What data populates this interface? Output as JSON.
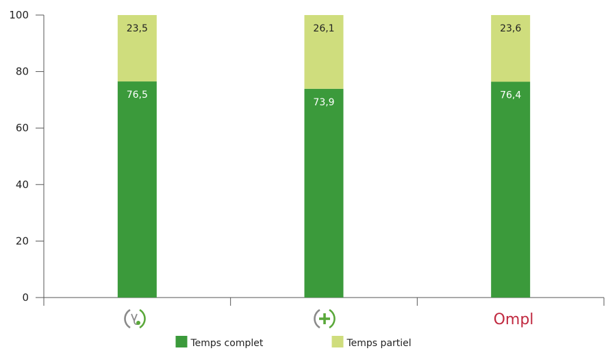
{
  "chart_data": {
    "type": "bar",
    "stacked": true,
    "categories": [
      "",
      "",
      ""
    ],
    "category_icons": [
      "stethoscope-icon",
      "medical-cross-icon",
      "ompl-logo"
    ],
    "logo_text": "Ompl",
    "series": [
      {
        "name": "Temps complet",
        "values": [
          76.5,
          73.9,
          76.4
        ],
        "labels": [
          "76,5",
          "73,9",
          "76,4"
        ],
        "color": "#3b9a3b",
        "label_color": "#ffffff"
      },
      {
        "name": "Temps partiel",
        "values": [
          23.5,
          26.1,
          23.6
        ],
        "labels": [
          "23,5",
          "26,1",
          "23,6"
        ],
        "color": "#cfdd7d",
        "label_color": "#222222"
      }
    ],
    "ylim": [
      0,
      100
    ],
    "yticks": [
      0,
      20,
      40,
      60,
      80,
      100
    ],
    "ytick_labels": [
      "0",
      "20",
      "40",
      "60",
      "80",
      "100"
    ],
    "xlabel": "",
    "ylabel": "",
    "title": "",
    "grid": false,
    "legend_position": "bottom-center"
  },
  "colors": {
    "full_time": "#3b9a3b",
    "part_time": "#cfdd7d",
    "icon_green": "#5aa83a",
    "icon_grey": "#8a8a8a",
    "logo_red": "#c0283f"
  }
}
